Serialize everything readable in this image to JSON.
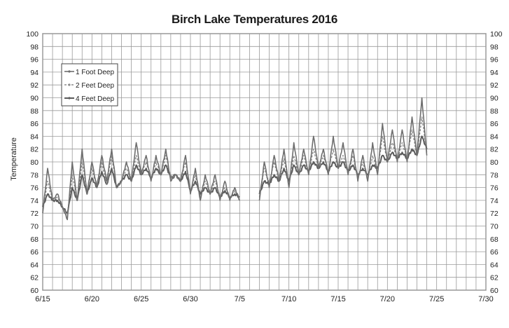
{
  "chart_data": {
    "type": "line",
    "title": "Birch Lake Temperatures 2016",
    "ylabel": "Temperature",
    "xlabel": "",
    "ylim": [
      60,
      100
    ],
    "y_ticks": [
      60,
      62,
      64,
      66,
      68,
      70,
      72,
      74,
      76,
      78,
      80,
      82,
      84,
      86,
      88,
      90,
      92,
      94,
      96,
      98,
      100
    ],
    "x_range_days": [
      "6/15",
      "7/30"
    ],
    "x_ticks": [
      "6/15",
      "6/20",
      "6/25",
      "6/30",
      "7/5",
      "7/10",
      "7/15",
      "7/20",
      "7/25",
      "7/30"
    ],
    "grid": true,
    "legend_position": "top-left",
    "series": [
      {
        "name": "1 Foot Deep",
        "color": "#6e6e6e",
        "segments": [
          {
            "x": [
              "6/15",
              "6/15.5",
              "6/16",
              "6/16.5",
              "6/17",
              "6/17.5",
              "6/18",
              "6/18.5",
              "6/19",
              "6/19.5",
              "6/20",
              "6/20.5",
              "6/21",
              "6/21.5",
              "6/22",
              "6/22.5",
              "6/23",
              "6/23.5",
              "6/24",
              "6/24.5",
              "6/25",
              "6/25.5",
              "6/26",
              "6/26.5",
              "6/27",
              "6/27.5",
              "6/28",
              "6/28.5",
              "6/29",
              "6/29.5",
              "6/30",
              "6/30.5",
              "7/1",
              "7/1.5",
              "7/2",
              "7/2.5",
              "7/3",
              "7/3.5",
              "7/4",
              "7/4.5",
              "7/5"
            ],
            "y": [
              72,
              79,
              74,
              75,
              73,
              71,
              80,
              74,
              82,
              75,
              80,
              76,
              81,
              77,
              82,
              76,
              77,
              80,
              77,
              83,
              78,
              81,
              77,
              81,
              78,
              82,
              77,
              78,
              77,
              81,
              75,
              79,
              74,
              78,
              75,
              78,
              74,
              77,
              74,
              76,
              74
            ]
          },
          {
            "x": [
              "7/7",
              "7/7.5",
              "7/8",
              "7/8.5",
              "7/9",
              "7/9.5",
              "7/10",
              "7/10.5",
              "7/11",
              "7/11.5",
              "7/12",
              "7/12.5",
              "7/13",
              "7/13.5",
              "7/14",
              "7/14.5",
              "7/15",
              "7/15.5",
              "7/16",
              "7/16.5",
              "7/17",
              "7/17.5",
              "7/18",
              "7/18.5",
              "7/19",
              "7/19.5",
              "7/20",
              "7/20.5",
              "7/21",
              "7/21.5",
              "7/22",
              "7/22.5",
              "7/23",
              "7/23.5",
              "7/24"
            ],
            "y": [
              74,
              80,
              76,
              81,
              77,
              82,
              76,
              83,
              78,
              82,
              78,
              84,
              79,
              82,
              78,
              84,
              79,
              83,
              78,
              82,
              77,
              81,
              77,
              83,
              78,
              86,
              80,
              85,
              80,
              85,
              80,
              87,
              81,
              90,
              81
            ]
          }
        ]
      },
      {
        "name": "2 Feet Deep",
        "color": "#8c8c8c",
        "segments": [
          {
            "x": [
              "6/15",
              "6/15.5",
              "6/16",
              "6/16.5",
              "6/17",
              "6/17.5",
              "6/18",
              "6/18.5",
              "6/19",
              "6/19.5",
              "6/20",
              "6/20.5",
              "6/21",
              "6/21.5",
              "6/22",
              "6/22.5",
              "6/23",
              "6/23.5",
              "6/24",
              "6/24.5",
              "6/25",
              "6/25.5",
              "6/26",
              "6/26.5",
              "6/27",
              "6/27.5",
              "6/28",
              "6/28.5",
              "6/29",
              "6/29.5",
              "6/30",
              "6/30.5",
              "7/1",
              "7/1.5",
              "7/2",
              "7/2.5",
              "7/3",
              "7/3.5",
              "7/4",
              "7/4.5",
              "7/5"
            ],
            "y": [
              72.5,
              77,
              74,
              74.5,
              73,
              71.5,
              78,
              74,
              80,
              75.5,
              79,
              76,
              80,
              76.5,
              81,
              76,
              77,
              79,
              77,
              81,
              78,
              80,
              77.5,
              80,
              78,
              81,
              77.5,
              78,
              77,
              80,
              75.5,
              78,
              74.5,
              77,
              75,
              77,
              74.5,
              76,
              74.5,
              75.5,
              74.5
            ]
          },
          {
            "x": [
              "7/7",
              "7/7.5",
              "7/8",
              "7/8.5",
              "7/9",
              "7/9.5",
              "7/10",
              "7/10.5",
              "7/11",
              "7/11.5",
              "7/12",
              "7/12.5",
              "7/13",
              "7/13.5",
              "7/14",
              "7/14.5",
              "7/15",
              "7/15.5",
              "7/16",
              "7/16.5",
              "7/17",
              "7/17.5",
              "7/18",
              "7/18.5",
              "7/19",
              "7/19.5",
              "7/20",
              "7/20.5",
              "7/21",
              "7/21.5",
              "7/22",
              "7/22.5",
              "7/23",
              "7/23.5",
              "7/24"
            ],
            "y": [
              74.5,
              79,
              76.5,
              80,
              77,
              80.5,
              76.5,
              81,
              78,
              81,
              78,
              82,
              79,
              81,
              78.5,
              82,
              79,
              81,
              78,
              81,
              77.5,
              80,
              77.5,
              81,
              78.5,
              84,
              80,
              83,
              80.5,
              83,
              80.5,
              85,
              81,
              87,
              81.5
            ]
          }
        ]
      },
      {
        "name": "4 Feet Deep",
        "color": "#5a5a5a",
        "segments": [
          {
            "x": [
              "6/15",
              "6/15.5",
              "6/16",
              "6/16.5",
              "6/17",
              "6/17.5",
              "6/18",
              "6/18.5",
              "6/19",
              "6/19.5",
              "6/20",
              "6/20.5",
              "6/21",
              "6/21.5",
              "6/22",
              "6/22.5",
              "6/23",
              "6/23.5",
              "6/24",
              "6/24.5",
              "6/25",
              "6/25.5",
              "6/26",
              "6/26.5",
              "6/27",
              "6/27.5",
              "6/28",
              "6/28.5",
              "6/29",
              "6/29.5",
              "6/30",
              "6/30.5",
              "7/1",
              "7/1.5",
              "7/2",
              "7/2.5",
              "7/3",
              "7/3.5",
              "7/4",
              "7/4.5",
              "7/5"
            ],
            "y": [
              73,
              75,
              74,
              74,
              73,
              72,
              76,
              74,
              78,
              75,
              77.5,
              76,
              78.5,
              76.5,
              79,
              76,
              77,
              78,
              77,
              79.5,
              78,
              79,
              77.5,
              79,
              78,
              79.5,
              77.5,
              78,
              77,
              78.5,
              75.5,
              77,
              75,
              76,
              75,
              76,
              74.5,
              75.5,
              74.5,
              75,
              74.5
            ]
          },
          {
            "x": [
              "7/7",
              "7/7.5",
              "7/8",
              "7/8.5",
              "7/9",
              "7/9.5",
              "7/10",
              "7/10.5",
              "7/11",
              "7/11.5",
              "7/12",
              "7/12.5",
              "7/13",
              "7/13.5",
              "7/14",
              "7/14.5",
              "7/15",
              "7/15.5",
              "7/16",
              "7/16.5",
              "7/17",
              "7/17.5",
              "7/18",
              "7/18.5",
              "7/19",
              "7/19.5",
              "7/20",
              "7/20.5",
              "7/21",
              "7/21.5",
              "7/22",
              "7/22.5",
              "7/23",
              "7/23.5",
              "7/24"
            ],
            "y": [
              75,
              77,
              76.5,
              78,
              77,
              79,
              77,
              79.5,
              78,
              79.5,
              78.5,
              80,
              79,
              80,
              78.5,
              80,
              79,
              80,
              78.5,
              79.5,
              78,
              79,
              78,
              79.5,
              79,
              81,
              80,
              81.5,
              80.5,
              81.5,
              80.5,
              82,
              81,
              84,
              82
            ]
          }
        ]
      }
    ]
  }
}
